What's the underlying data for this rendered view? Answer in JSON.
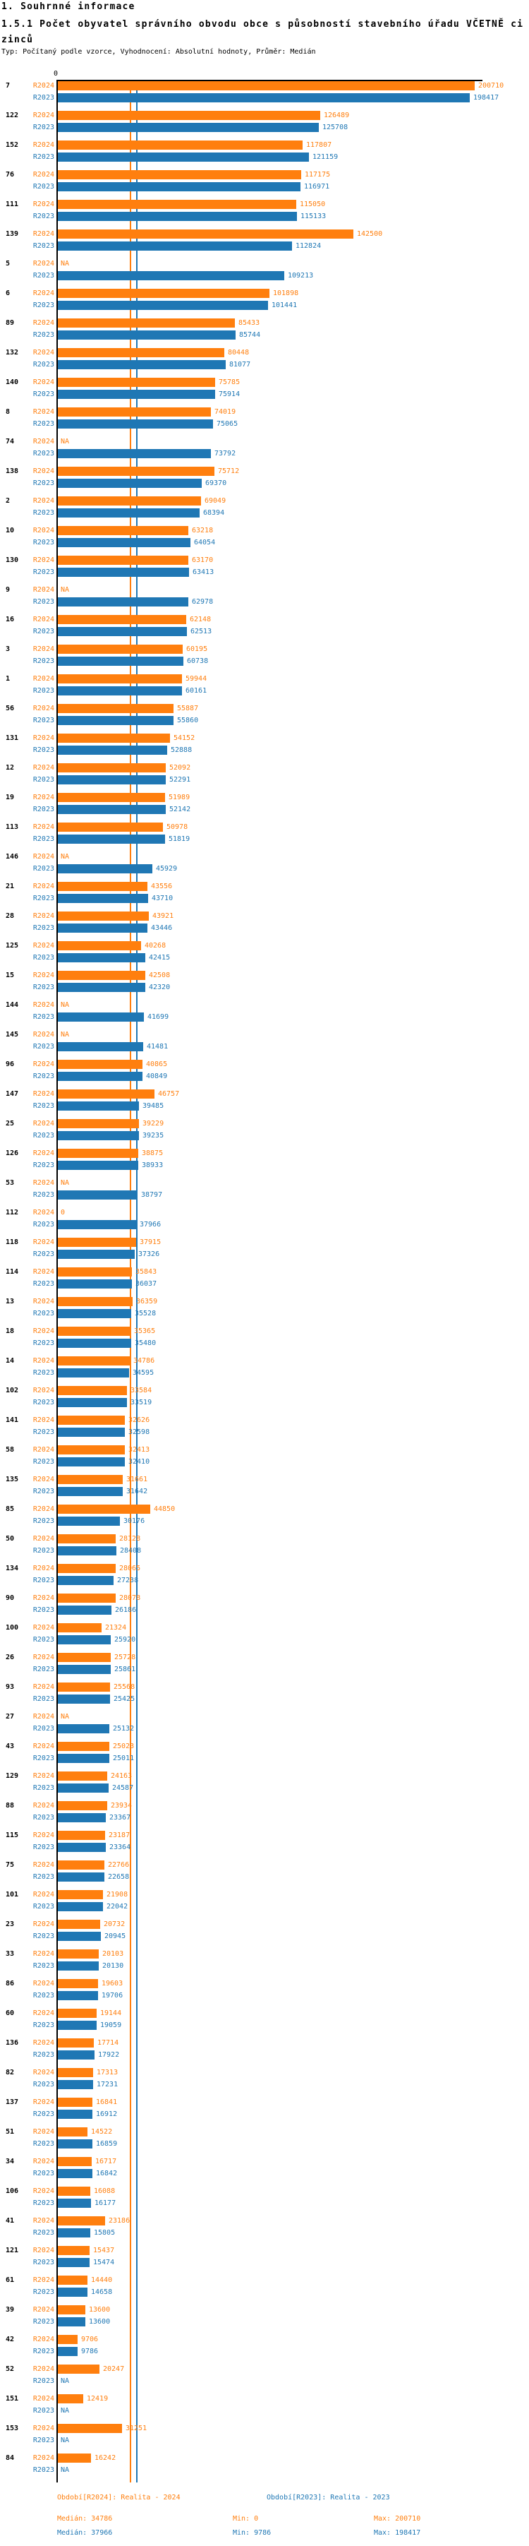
{
  "header": {
    "section_title": "1. Souhrnné informace",
    "chart_title": "1.5.1 Počet obyvatel správního obvodu obce s působností stavebního úřadu VČETNĚ cizinců",
    "subtitle": "Typ: Počítaný podle vzorce, Vyhodnocení: Absolutní hodnoty, Průměr: Medián"
  },
  "chart_data": {
    "type": "bar",
    "orientation": "horizontal",
    "axis": {
      "zero_label": "0",
      "xlim": [
        0,
        202000
      ],
      "grid": false
    },
    "colors": {
      "r2024": "#ff7f0e",
      "r2023": "#1f77b4",
      "axis": "#000000"
    },
    "series_labels": {
      "r2024": "R2024",
      "r2023": "R2023"
    },
    "na_label": "NA",
    "medians": {
      "r2024": 34786,
      "r2023": 37966
    },
    "groups": [
      {
        "id": "7",
        "r2024": 200710,
        "r2023": 198417
      },
      {
        "id": "122",
        "r2024": 126489,
        "r2023": 125708
      },
      {
        "id": "152",
        "r2024": 117807,
        "r2023": 121159
      },
      {
        "id": "76",
        "r2024": 117175,
        "r2023": 116971
      },
      {
        "id": "111",
        "r2024": 115050,
        "r2023": 115133
      },
      {
        "id": "139",
        "r2024": 142500,
        "r2023": 112824
      },
      {
        "id": "5",
        "r2024": "NA",
        "r2023": 109213
      },
      {
        "id": "6",
        "r2024": 101898,
        "r2023": 101441
      },
      {
        "id": "89",
        "r2024": 85433,
        "r2023": 85744
      },
      {
        "id": "132",
        "r2024": 80448,
        "r2023": 81077
      },
      {
        "id": "140",
        "r2024": 75785,
        "r2023": 75914
      },
      {
        "id": "8",
        "r2024": 74019,
        "r2023": 75065
      },
      {
        "id": "74",
        "r2024": "NA",
        "r2023": 73792
      },
      {
        "id": "138",
        "r2024": 75712,
        "r2023": 69370
      },
      {
        "id": "2",
        "r2024": 69049,
        "r2023": 68394
      },
      {
        "id": "10",
        "r2024": 63218,
        "r2023": 64054
      },
      {
        "id": "130",
        "r2024": 63170,
        "r2023": 63413
      },
      {
        "id": "9",
        "r2024": "NA",
        "r2023": 62978
      },
      {
        "id": "16",
        "r2024": 62148,
        "r2023": 62513
      },
      {
        "id": "3",
        "r2024": 60195,
        "r2023": 60738
      },
      {
        "id": "1",
        "r2024": 59944,
        "r2023": 60161
      },
      {
        "id": "56",
        "r2024": 55887,
        "r2023": 55860
      },
      {
        "id": "131",
        "r2024": 54152,
        "r2023": 52888
      },
      {
        "id": "12",
        "r2024": 52092,
        "r2023": 52291
      },
      {
        "id": "19",
        "r2024": 51989,
        "r2023": 52142
      },
      {
        "id": "113",
        "r2024": 50978,
        "r2023": 51819
      },
      {
        "id": "146",
        "r2024": "NA",
        "r2023": 45929
      },
      {
        "id": "21",
        "r2024": 43556,
        "r2023": 43710
      },
      {
        "id": "28",
        "r2024": 43921,
        "r2023": 43446
      },
      {
        "id": "125",
        "r2024": 40268,
        "r2023": 42415
      },
      {
        "id": "15",
        "r2024": 42508,
        "r2023": 42320
      },
      {
        "id": "144",
        "r2024": "NA",
        "r2023": 41699
      },
      {
        "id": "145",
        "r2024": "NA",
        "r2023": 41481
      },
      {
        "id": "96",
        "r2024": 40865,
        "r2023": 40849
      },
      {
        "id": "147",
        "r2024": 46757,
        "r2023": 39485
      },
      {
        "id": "25",
        "r2024": 39229,
        "r2023": 39235
      },
      {
        "id": "126",
        "r2024": 38875,
        "r2023": 38933
      },
      {
        "id": "53",
        "r2024": "NA",
        "r2023": 38797
      },
      {
        "id": "112",
        "r2024": 0,
        "r2023": 37966
      },
      {
        "id": "118",
        "r2024": 37915,
        "r2023": 37326
      },
      {
        "id": "114",
        "r2024": 35843,
        "r2023": 36037
      },
      {
        "id": "13",
        "r2024": 36359,
        "r2023": 35528
      },
      {
        "id": "18",
        "r2024": 35365,
        "r2023": 35480
      },
      {
        "id": "14",
        "r2024": 34786,
        "r2023": 34595
      },
      {
        "id": "102",
        "r2024": 33584,
        "r2023": 33519
      },
      {
        "id": "141",
        "r2024": 32626,
        "r2023": 32598
      },
      {
        "id": "58",
        "r2024": 32413,
        "r2023": 32410
      },
      {
        "id": "135",
        "r2024": 31661,
        "r2023": 31642
      },
      {
        "id": "85",
        "r2024": 44850,
        "r2023": 30176
      },
      {
        "id": "50",
        "r2024": 28128,
        "r2023": 28408
      },
      {
        "id": "134",
        "r2024": 28065,
        "r2023": 27238
      },
      {
        "id": "90",
        "r2024": 28078,
        "r2023": 26186
      },
      {
        "id": "100",
        "r2024": 21324,
        "r2023": 25920
      },
      {
        "id": "26",
        "r2024": 25728,
        "r2023": 25861
      },
      {
        "id": "93",
        "r2024": 25568,
        "r2023": 25425
      },
      {
        "id": "27",
        "r2024": "NA",
        "r2023": 25132
      },
      {
        "id": "43",
        "r2024": 25023,
        "r2023": 25011
      },
      {
        "id": "129",
        "r2024": 24163,
        "r2023": 24587
      },
      {
        "id": "88",
        "r2024": 23934,
        "r2023": 23367
      },
      {
        "id": "115",
        "r2024": 23187,
        "r2023": 23364
      },
      {
        "id": "75",
        "r2024": 22766,
        "r2023": 22658
      },
      {
        "id": "101",
        "r2024": 21908,
        "r2023": 22042
      },
      {
        "id": "23",
        "r2024": 20732,
        "r2023": 20945
      },
      {
        "id": "33",
        "r2024": 20103,
        "r2023": 20130
      },
      {
        "id": "86",
        "r2024": 19603,
        "r2023": 19706
      },
      {
        "id": "60",
        "r2024": 19144,
        "r2023": 19059
      },
      {
        "id": "136",
        "r2024": 17714,
        "r2023": 17922
      },
      {
        "id": "82",
        "r2024": 17313,
        "r2023": 17231
      },
      {
        "id": "137",
        "r2024": 16841,
        "r2023": 16912
      },
      {
        "id": "51",
        "r2024": 14522,
        "r2023": 16859
      },
      {
        "id": "34",
        "r2024": 16717,
        "r2023": 16842
      },
      {
        "id": "106",
        "r2024": 16088,
        "r2023": 16177
      },
      {
        "id": "41",
        "r2024": 23186,
        "r2023": 15805
      },
      {
        "id": "121",
        "r2024": 15437,
        "r2023": 15474
      },
      {
        "id": "61",
        "r2024": 14440,
        "r2023": 14658
      },
      {
        "id": "39",
        "r2024": 13600,
        "r2023": 13600
      },
      {
        "id": "42",
        "r2024": 9706,
        "r2023": 9786
      },
      {
        "id": "52",
        "r2024": 20247,
        "r2023": "NA"
      },
      {
        "id": "151",
        "r2024": 12419,
        "r2023": "NA"
      },
      {
        "id": "153",
        "r2024": 31251,
        "r2023": "NA"
      },
      {
        "id": "84",
        "r2024": 16242,
        "r2023": "NA"
      }
    ],
    "legend": [
      {
        "label": "Období[R2024]: Realita - 2024",
        "color": "#ff7f0e"
      },
      {
        "label": "Období[R2023]: Realita - 2023",
        "color": "#1f77b4"
      }
    ],
    "stats": [
      {
        "median": "Medián: 34786",
        "min": "Min: 0",
        "max": "Max: 200710"
      },
      {
        "median": "Medián: 37966",
        "min": "Min: 9786",
        "max": "Max: 198417"
      }
    ]
  }
}
